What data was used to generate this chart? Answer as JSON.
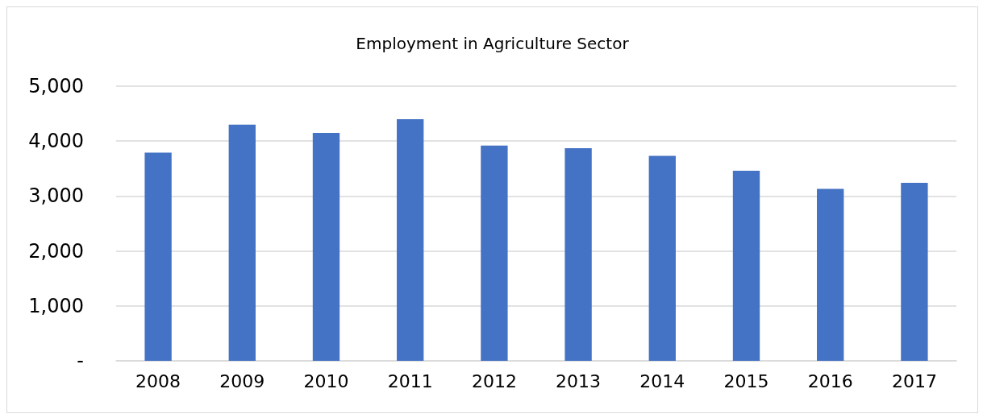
{
  "chart_data": {
    "type": "bar",
    "title": "Employment in Agriculture Sector",
    "categories": [
      "2008",
      "2009",
      "2010",
      "2011",
      "2012",
      "2013",
      "2014",
      "2015",
      "2016",
      "2017"
    ],
    "values": [
      3790,
      4300,
      4150,
      4400,
      3920,
      3870,
      3730,
      3460,
      3130,
      3240
    ],
    "color": "#4472c4",
    "ylim": [
      0,
      5000
    ],
    "yticks": [
      {
        "value": 0,
        "label": "-"
      },
      {
        "value": 1000,
        "label": "1,000"
      },
      {
        "value": 2000,
        "label": "2,000"
      },
      {
        "value": 3000,
        "label": "3,000"
      },
      {
        "value": 4000,
        "label": "4,000"
      },
      {
        "value": 5000,
        "label": "5,000"
      }
    ],
    "grid": "y"
  }
}
